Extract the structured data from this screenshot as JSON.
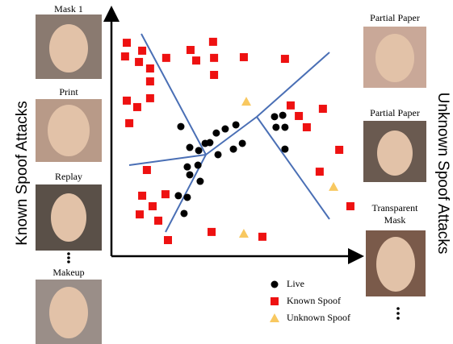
{
  "chart_data": {
    "type": "scatter",
    "xlim": [
      0,
      100
    ],
    "ylim": [
      0,
      100
    ],
    "series": [
      {
        "name": "Live",
        "color": "#000000",
        "marker": "circle",
        "x": [
          28.0,
          31.6,
          35.2,
          39.7,
          42.3,
          45.9,
          50.2,
          49.2,
          52.8,
          37.8,
          43.0,
          30.6,
          34.9,
          31.6,
          35.8,
          30.6,
          27.0,
          29.3,
          65.8,
          69.1,
          66.4,
          70.0,
          70.0
        ],
        "values": [
          54.0,
          45.3,
          44.0,
          47.3,
          51.3,
          53.0,
          54.7,
          44.6,
          47.0,
          47.0,
          42.3,
          37.2,
          37.9,
          33.9,
          31.2,
          24.5,
          25.2,
          17.8,
          58.1,
          58.7,
          53.7,
          53.7,
          44.6
        ]
      },
      {
        "name": "Known Spoof",
        "color": "#ee1111",
        "marker": "square",
        "x": [
          6.2,
          5.5,
          12.4,
          11.1,
          15.6,
          15.6,
          15.6,
          10.4,
          6.2,
          7.2,
          22.1,
          31.9,
          34.2,
          41.0,
          41.4,
          41.4,
          53.4,
          70.0,
          72.3,
          75.6,
          78.8,
          85.3,
          91.9,
          84.0,
          96.4,
          14.3,
          12.4,
          21.8,
          16.6,
          11.4,
          18.9,
          22.8,
          40.4,
          60.9
        ],
        "values": [
          88.9,
          83.2,
          85.6,
          80.9,
          78.2,
          72.8,
          65.8,
          62.1,
          64.8,
          55.4,
          82.6,
          85.9,
          81.5,
          89.3,
          82.6,
          75.5,
          82.9,
          82.2,
          62.8,
          58.4,
          53.7,
          61.4,
          44.3,
          35.2,
          20.8,
          35.9,
          25.2,
          25.8,
          20.8,
          17.4,
          14.8,
          6.7,
          10.1,
          8.1
        ]
      },
      {
        "name": "Unknown Spoof",
        "color": "#f8c860",
        "marker": "triangle",
        "x": [
          54.4,
          89.6,
          53.4
        ],
        "values": [
          64.4,
          28.9,
          9.4
        ]
      }
    ]
  },
  "left_panel": {
    "title": "Known Spoof Attacks",
    "images": [
      "Mask 1",
      "Print",
      "Replay",
      "Makeup"
    ]
  },
  "right_panel": {
    "title": "Unknown Spoof Attacks",
    "images": [
      "Partial Paper",
      "Partial Paper",
      "Transparent Mask"
    ]
  }
}
